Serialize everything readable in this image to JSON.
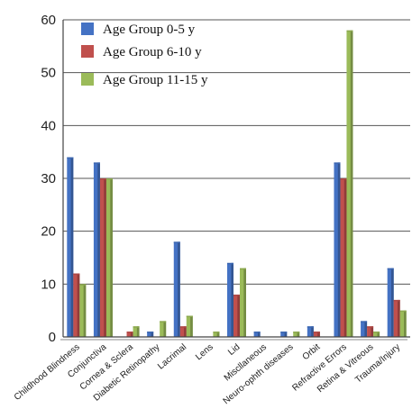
{
  "chart_data": {
    "type": "bar",
    "title": "",
    "xlabel": "",
    "ylabel": "",
    "ylim": [
      0,
      60
    ],
    "yticks": [
      0,
      10,
      20,
      30,
      40,
      50,
      60
    ],
    "grid": true,
    "legend_position": "top-left",
    "categories": [
      "Childhood Blindness",
      "Conjunctiva",
      "Cornea & Sclera",
      "Diabetic Retinopathy",
      "Lacrimal",
      "Lens",
      "Lid",
      "Miscllaneous",
      "Neuro-ophth diseases",
      "Orbit",
      "Refractive Errors",
      "Retina & Vitreous",
      "Trauma/Injury"
    ],
    "series": [
      {
        "name": "Age Group 0-5 y",
        "color": "#4472C4",
        "values": [
          34,
          33,
          0,
          1,
          18,
          0,
          14,
          1,
          1,
          2,
          33,
          3,
          13
        ]
      },
      {
        "name": "Age Group 6-10 y",
        "color": "#C0504D",
        "values": [
          12,
          30,
          1,
          0,
          2,
          0,
          8,
          0,
          0,
          1,
          30,
          2,
          7
        ]
      },
      {
        "name": "Age Group 11-15 y",
        "color": "#9BBB59",
        "values": [
          10,
          30,
          2,
          3,
          4,
          1,
          13,
          0,
          1,
          0,
          58,
          1,
          5
        ]
      }
    ]
  }
}
